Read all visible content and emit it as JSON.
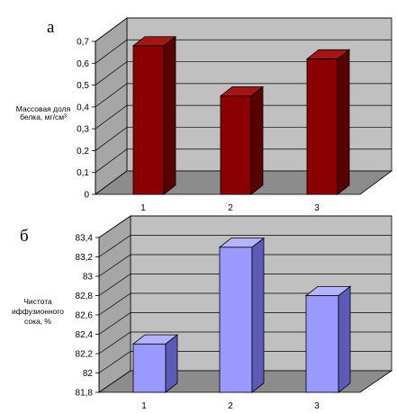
{
  "chart_data": [
    {
      "type": "bar",
      "panel_label": "а",
      "categories": [
        "1",
        "2",
        "3"
      ],
      "values": [
        0.68,
        0.45,
        0.62
      ],
      "ylabel_lines": [
        "Массовая доля",
        "белка, мг/см³"
      ],
      "yticks": [
        "0",
        "0,1",
        "0,2",
        "0,3",
        "0,4",
        "0,5",
        "0,6",
        "0,7"
      ],
      "ylim": [
        0,
        0.7
      ],
      "grid": true,
      "bar_color": "#8b0000",
      "bar_side_color": "#5a0000",
      "bar_top_color": "#a41616"
    },
    {
      "type": "bar",
      "panel_label": "б",
      "categories": [
        "1",
        "2",
        "3"
      ],
      "values": [
        82.3,
        83.3,
        82.8
      ],
      "ylabel_lines": [
        "Чистота",
        "иффузионного",
        "сока, %"
      ],
      "yticks": [
        "81,8",
        "82",
        "82,2",
        "82,4",
        "82,6",
        "82,8",
        "83",
        "83,2",
        "83,4"
      ],
      "ylim": [
        81.8,
        83.4
      ],
      "grid": true,
      "bar_color": "#9999ff",
      "bar_side_color": "#5c5cb8",
      "bar_top_color": "#b3b3ff"
    }
  ]
}
